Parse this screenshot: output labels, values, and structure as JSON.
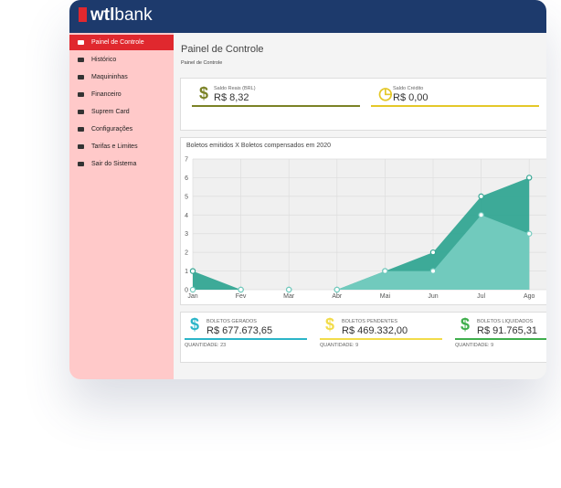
{
  "header": {
    "logo_prefix": "wtl",
    "logo_suffix": "bank"
  },
  "sidebar": {
    "items": [
      "Painel de Controle",
      "Histórico",
      "Maquininhas",
      "Financeiro",
      "Suprem Card",
      "Configurações",
      "Tarifas e Limites",
      "Sair do Sistema"
    ]
  },
  "page": {
    "title": "Painel de Controle",
    "breadcrumb": "Painel de Controle"
  },
  "balances": [
    {
      "icon": "$",
      "label": "Saldo Reais (BRL)",
      "value": "R$ 8,32"
    },
    {
      "icon": "◷",
      "label": "Saldo Crédito",
      "value": "R$ 0,00"
    }
  ],
  "chart": {
    "type": "area",
    "title": "Boletos emitidos X Boletos compensados em 2020",
    "categories": [
      "Jan",
      "Fev",
      "Mar",
      "Abr",
      "Mai",
      "Jun",
      "Jul",
      "Ago"
    ],
    "series": [
      {
        "color": "#33a592",
        "values": [
          1,
          0,
          0,
          0,
          1,
          2,
          5,
          6
        ]
      },
      {
        "color": "#74cbbf",
        "values": [
          0,
          0,
          0,
          0,
          1,
          1,
          4,
          3
        ]
      }
    ],
    "ylim": [
      0,
      7
    ],
    "yticks": [
      0,
      1,
      2,
      3,
      4,
      5,
      6,
      7
    ],
    "grid": true
  },
  "stats": [
    {
      "icon": "$",
      "label": "BOLETOS GERADOS",
      "value": "R$ 677.673,65",
      "quantity": "QUANTIDADE: 23",
      "color": "#2bb5c8"
    },
    {
      "icon": "$",
      "label": "BOLETOS PENDENTES",
      "value": "R$ 469.332,00",
      "quantity": "QUANTIDADE: 9",
      "color": "#f2dc4a"
    },
    {
      "icon": "$",
      "label": "BOLETOS LIQUIDADOS",
      "value": "R$ 91.765,31",
      "quantity": "QUANTIDADE: 9",
      "color": "#3fae4c"
    }
  ]
}
